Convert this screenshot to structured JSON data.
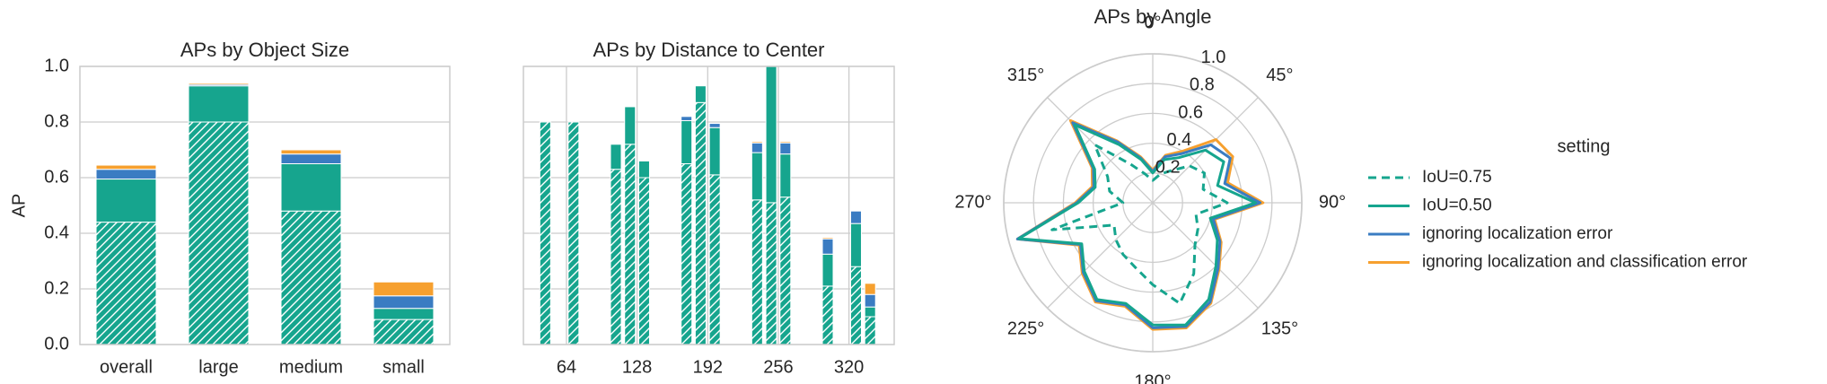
{
  "chart_data": [
    {
      "type": "bar",
      "title": "APs by Object Size",
      "y_label": "AP",
      "categories": [
        "overall",
        "large",
        "medium",
        "small"
      ],
      "series": [
        {
          "color": "#16a58e",
          "hatch": true,
          "values": [
            0.44,
            0.8,
            0.48,
            0.09
          ]
        },
        {
          "color": "#16a58e",
          "values": [
            0.155,
            0.13,
            0.17,
            0.04
          ]
        },
        {
          "color": "#3a7cc2",
          "values": [
            0.035,
            0.005,
            0.035,
            0.045
          ]
        },
        {
          "color": "#f6a02f",
          "values": [
            0.015,
            0.005,
            0.015,
            0.05
          ]
        }
      ],
      "ylim": [
        0,
        1
      ],
      "yticks": [
        {
          "value": 0,
          "label": "0.0"
        },
        0.2,
        0.4,
        0.6,
        0.8,
        {
          "value": 1,
          "label": "1.0"
        }
      ],
      "grid": true
    },
    {
      "type": "bar",
      "title": "APs by Distance to Center",
      "x": [
        44.8,
        70.4,
        108.8,
        121.6,
        134.4,
        172.8,
        185.6,
        198.4,
        236.8,
        249.6,
        262.4,
        300.8,
        326.4,
        339.2
      ],
      "series": [
        {
          "color": "#16a58e",
          "hatch": true,
          "values": [
            0.8,
            0.8,
            0.63,
            0.72,
            0.6,
            0.65,
            0.87,
            0.61,
            0.52,
            0.51,
            0.53,
            0.21,
            0.28,
            0.1
          ]
        },
        {
          "color": "#16a58e",
          "values": [
            0,
            0,
            0.09,
            0.135,
            0.06,
            0.155,
            0.06,
            0.17,
            0.17,
            0.49,
            0.155,
            0.115,
            0.155,
            0.035
          ]
        },
        {
          "color": "#3a7cc2",
          "values": [
            0,
            0,
            0,
            0,
            0,
            0.015,
            0,
            0.015,
            0.035,
            0,
            0.04,
            0.055,
            0.045,
            0.045
          ]
        },
        {
          "color": "#f6a02f",
          "values": [
            0,
            0,
            0,
            0,
            0,
            0,
            0,
            0,
            0.005,
            0,
            0.005,
            0.005,
            0,
            0.04
          ]
        }
      ],
      "xlim": [
        25,
        361
      ],
      "xticks": [
        64,
        128,
        192,
        256,
        320
      ],
      "ylim": [
        0,
        1
      ],
      "yticks": [
        0,
        0.2,
        0.4,
        0.6,
        0.8,
        1
      ],
      "grid": true
    },
    {
      "type": "polar",
      "title": "APs by Angle",
      "theta": [
        0,
        15,
        30,
        45,
        60,
        75,
        90,
        105,
        120,
        135,
        150,
        165,
        180,
        195,
        210,
        225,
        240,
        255,
        270,
        285,
        300,
        315,
        330,
        345
      ],
      "series": [
        {
          "name": "IoU=0.75",
          "color": "#16a58e",
          "dash": true,
          "values": [
            0.15,
            0.2,
            0.25,
            0.35,
            0.4,
            0.35,
            0.5,
            0.3,
            0.35,
            0.4,
            0.55,
            0.7,
            0.55,
            0.45,
            0.4,
            0.35,
            0.3,
            0.7,
            0.2,
            0.3,
            0.35,
            0.55,
            0.3,
            0.2
          ]
        },
        {
          "name": "IoU=0.50",
          "color": "#16a58e",
          "values": [
            0.2,
            0.3,
            0.35,
            0.5,
            0.55,
            0.45,
            0.69,
            0.4,
            0.5,
            0.6,
            0.75,
            0.85,
            0.82,
            0.7,
            0.75,
            0.65,
            0.55,
            0.93,
            0.5,
            0.4,
            0.45,
            0.74,
            0.45,
            0.3
          ]
        },
        {
          "name": "ignoring localization error",
          "color": "#3a7cc2",
          "values": [
            0.21,
            0.32,
            0.38,
            0.55,
            0.6,
            0.5,
            0.72,
            0.42,
            0.52,
            0.62,
            0.77,
            0.86,
            0.84,
            0.71,
            0.76,
            0.66,
            0.56,
            0.94,
            0.51,
            0.41,
            0.46,
            0.76,
            0.47,
            0.31
          ]
        },
        {
          "name": "ignoring localization and classification error",
          "color": "#f6a02f",
          "values": [
            0.22,
            0.33,
            0.4,
            0.6,
            0.62,
            0.52,
            0.74,
            0.43,
            0.53,
            0.63,
            0.78,
            0.87,
            0.85,
            0.72,
            0.77,
            0.67,
            0.57,
            0.94,
            0.52,
            0.42,
            0.47,
            0.78,
            0.48,
            0.32
          ]
        }
      ],
      "rlim": [
        0,
        1
      ],
      "rticks": [
        0.2,
        0.4,
        0.6,
        0.8,
        {
          "value": 1,
          "label": "1.0"
        }
      ],
      "thetaticks": [
        {
          "value": 0,
          "label": "0°"
        },
        {
          "value": 45,
          "label": "45°"
        },
        {
          "value": 90,
          "label": "90°"
        },
        {
          "value": 135,
          "label": "135°"
        },
        {
          "value": 180,
          "label": "180°"
        },
        {
          "value": 225,
          "label": "225°"
        },
        {
          "value": 270,
          "label": "270°"
        },
        {
          "value": 315,
          "label": "315°"
        }
      ],
      "grid": true,
      "legend_title": "setting",
      "legend": "right"
    }
  ]
}
